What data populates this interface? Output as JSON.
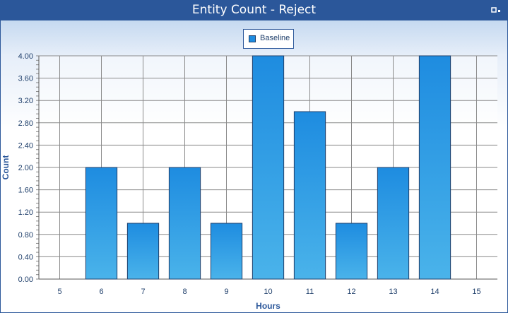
{
  "window": {
    "title": "Entity Count - Reject",
    "restore_icon": "restore-icon"
  },
  "colors": {
    "titlebar": "#2b579a",
    "bar_top": "#1e8ce0",
    "bar_bottom": "#4ab3ea",
    "bar_stroke": "#1f3f6b",
    "grid": "#8a8a8a",
    "axis_text": "#1f3f6b"
  },
  "chart_data": {
    "type": "bar",
    "title": "Entity Count - Reject",
    "xlabel": "Hours",
    "ylabel": "Count",
    "x_ticks": [
      "5",
      "6",
      "7",
      "8",
      "9",
      "10",
      "11",
      "12",
      "13",
      "14",
      "15"
    ],
    "y_ticks": [
      "0.00",
      "0.40",
      "0.80",
      "1.20",
      "1.60",
      "2.00",
      "2.40",
      "2.80",
      "3.20",
      "3.60",
      "4.00"
    ],
    "xlim": [
      4.5,
      15.5
    ],
    "ylim": [
      0,
      4
    ],
    "grid": true,
    "legend": {
      "position": "top-center",
      "entries": [
        "Baseline"
      ]
    },
    "series": [
      {
        "name": "Baseline",
        "x": [
          6,
          7,
          8,
          9,
          10,
          11,
          12,
          13,
          14
        ],
        "values": [
          2,
          1,
          2,
          1,
          4,
          3,
          1,
          2,
          4
        ]
      }
    ]
  }
}
